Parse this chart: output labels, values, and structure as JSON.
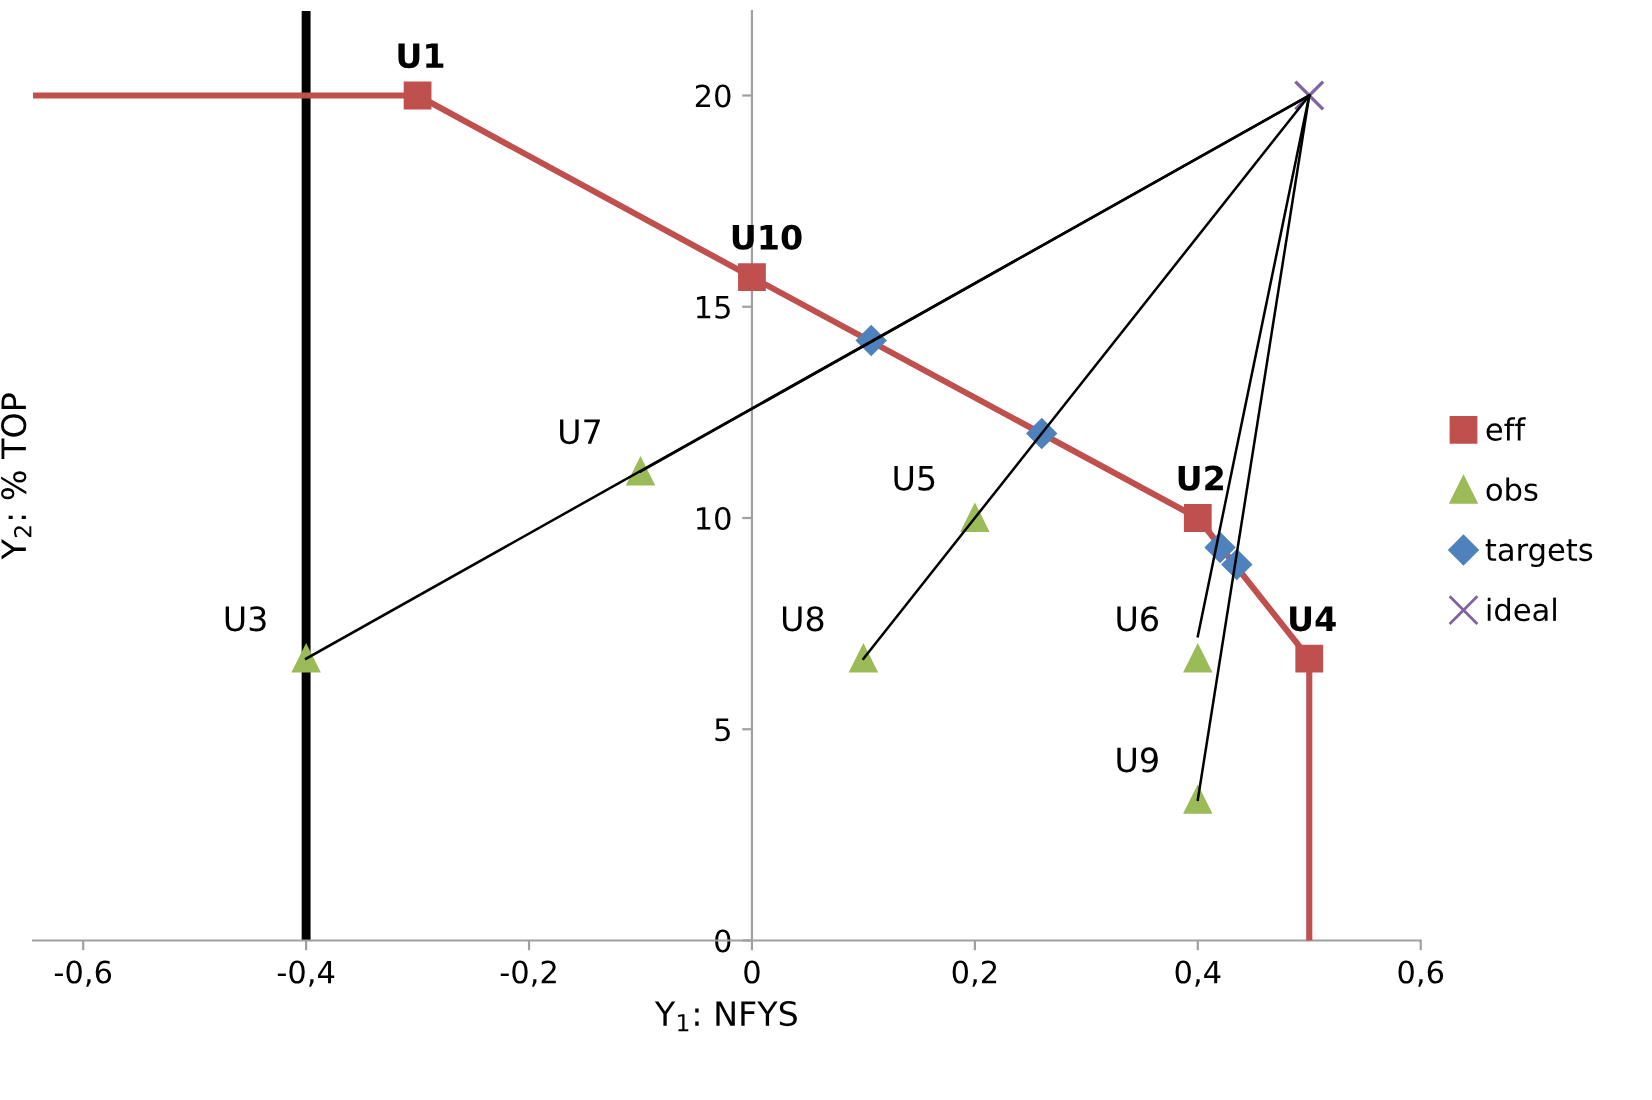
{
  "chart_data": {
    "type": "scatter",
    "xlabel": "Y$_{1}$: NFYS",
    "ylabel": "Y$_{2}$: % TOP",
    "xlim": [
      -0.645,
      0.6
    ],
    "ylim": [
      0,
      22
    ],
    "xticks": [
      {
        "value": -0.6,
        "label": "-0,6"
      },
      {
        "value": -0.4,
        "label": "-0,4"
      },
      {
        "value": -0.2,
        "label": "-0,2"
      },
      {
        "value": 0,
        "label": "0"
      },
      {
        "value": 0.2,
        "label": "0,2"
      },
      {
        "value": 0.4,
        "label": "0,4"
      },
      {
        "value": 0.6,
        "label": "0,6"
      }
    ],
    "yticks": [
      0,
      5,
      10,
      15,
      20
    ],
    "grid": false,
    "legend": "right",
    "series": [
      {
        "type": "line",
        "color": "#000000",
        "x": [
          -0.4,
          0.5
        ],
        "values": [
          6.67,
          20
        ]
      },
      {
        "type": "line",
        "color": "#000000",
        "x": [
          0.1,
          0.5
        ],
        "values": [
          6.67,
          20
        ]
      },
      {
        "type": "line",
        "color": "#000000",
        "x": [
          0.4,
          0.5
        ],
        "values": [
          7.2,
          20
        ]
      },
      {
        "type": "line",
        "color": "#000000",
        "x": [
          0.4,
          0.5
        ],
        "values": [
          3.33,
          20
        ]
      },
      {
        "type": "line",
        "color": "#000000",
        "x": [
          -0.1,
          0.5
        ],
        "values": [
          11.1,
          20
        ]
      },
      {
        "type": "line",
        "color": "#c0504d",
        "x": [
          -0.645,
          -0.3
        ],
        "values": [
          20,
          20
        ]
      },
      {
        "type": "line",
        "color": "#c0504d",
        "x": [
          0.5,
          0.5
        ],
        "values": [
          6.67,
          0
        ]
      },
      {
        "type": "line",
        "name": "eff",
        "color": "#c0504d",
        "marker": "square",
        "x": [
          -0.3,
          0,
          0.4,
          0.5
        ],
        "values": [
          20,
          15.7,
          10,
          6.67
        ]
      },
      {
        "name": "obs",
        "color": "#9bbb59",
        "marker": "triangle",
        "x": [
          -0.4,
          -0.1,
          0.2,
          0.1,
          0.4,
          0.4
        ],
        "values": [
          6.67,
          11.1,
          10,
          6.67,
          6.67,
          3.33
        ]
      },
      {
        "name": "targets",
        "color": "#4f81bd",
        "marker": "diamond",
        "x": [
          0.107,
          0.26,
          0.42,
          0.435
        ],
        "values": [
          14.2,
          12,
          9.3,
          8.9
        ]
      },
      {
        "name": "ideal",
        "color": "#8064a2",
        "marker": "cross",
        "x": [
          0.5
        ],
        "values": [
          20
        ]
      }
    ],
    "ref_lines": [
      {
        "axis": "x",
        "value": -0.4,
        "color": "#000000",
        "line_style": "solid"
      }
    ],
    "annotations": [
      {
        "text": "U1",
        "x": -0.3,
        "y": 20
      },
      {
        "text": "U10",
        "x": 0,
        "y": 15.7
      },
      {
        "text": "U2",
        "x": 0.4,
        "y": 10
      },
      {
        "text": "U4",
        "x": 0.5,
        "y": 6.67
      },
      {
        "text": "U3",
        "x": -0.4,
        "y": 6.67
      },
      {
        "text": "U7",
        "x": -0.1,
        "y": 11.1
      },
      {
        "text": "U5",
        "x": 0.2,
        "y": 10
      },
      {
        "text": "U8",
        "x": 0.1,
        "y": 6.67
      },
      {
        "text": "U6",
        "x": 0.4,
        "y": 6.67
      },
      {
        "text": "U9",
        "x": 0.4,
        "y": 3.33
      }
    ]
  }
}
